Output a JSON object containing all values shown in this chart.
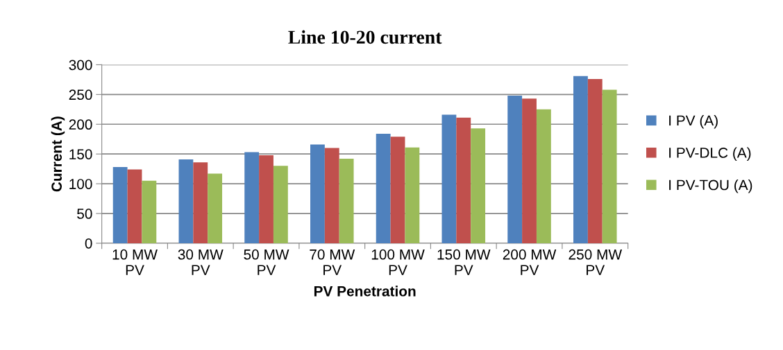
{
  "chart_data": {
    "type": "bar",
    "title": "Line 10-20 current",
    "xlabel": "PV Penetration",
    "ylabel": "Current (A)",
    "categories": [
      "10 MW\nPV",
      "30 MW\nPV",
      "50 MW\nPV",
      "70 MW\nPV",
      "100 MW\nPV",
      "150 MW\nPV",
      "200 MW\nPV",
      "250 MW\nPV"
    ],
    "series": [
      {
        "name": "I PV (A)",
        "color": "#4f81bd",
        "values": [
          128,
          141,
          153,
          166,
          184,
          216,
          248,
          281
        ]
      },
      {
        "name": "I PV-DLC (A)",
        "color": "#c0504d",
        "values": [
          124,
          136,
          148,
          160,
          179,
          211,
          243,
          276
        ]
      },
      {
        "name": "I PV-TOU (A)",
        "color": "#9bbb59",
        "values": [
          105,
          117,
          130,
          142,
          161,
          193,
          225,
          258
        ]
      }
    ],
    "ylim": [
      0,
      300
    ],
    "yticks": [
      0,
      50,
      100,
      150,
      200,
      250,
      300
    ],
    "grid": "y",
    "legend": "right"
  }
}
